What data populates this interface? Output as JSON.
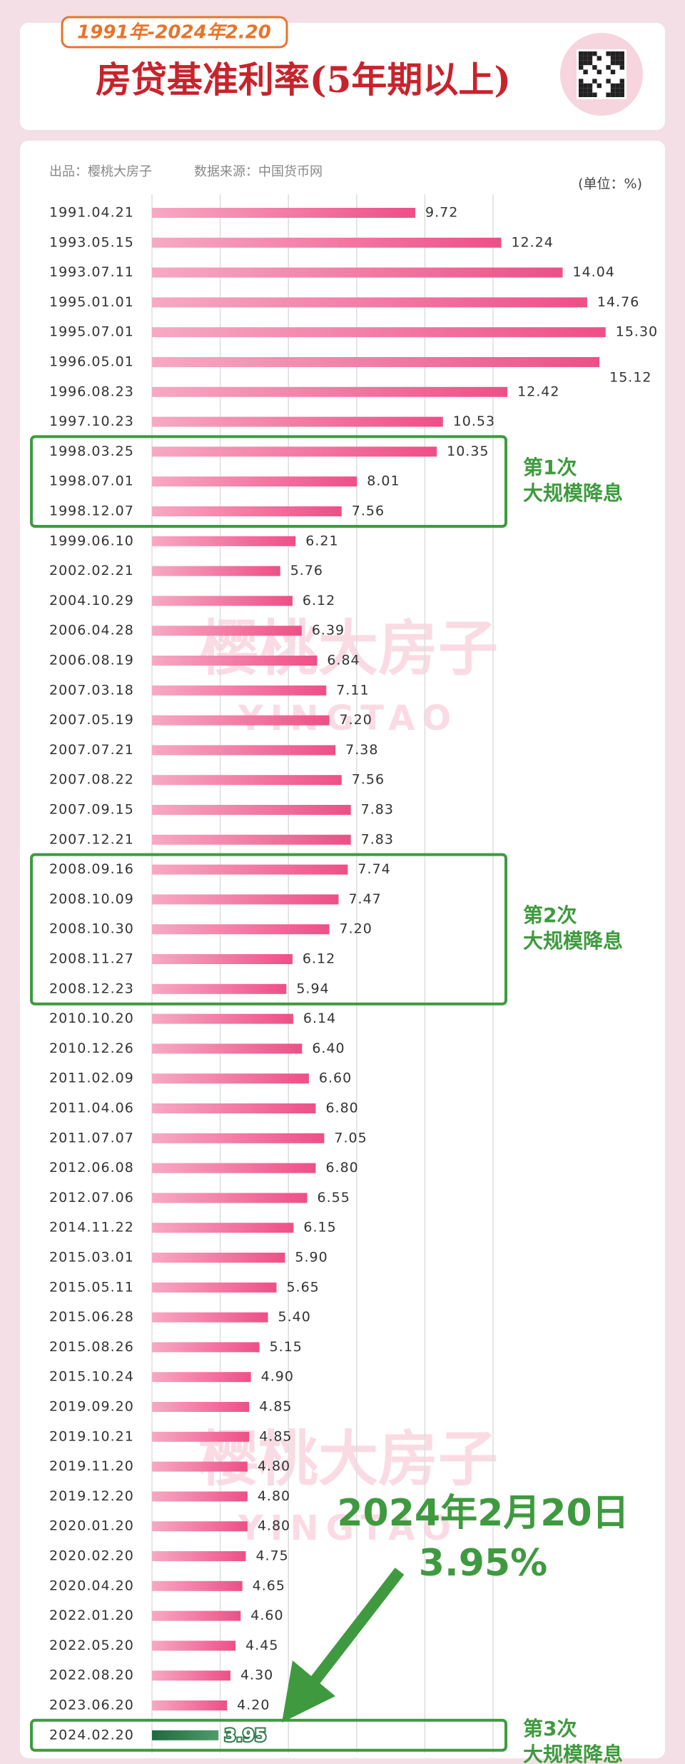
{
  "header": {
    "tag": "1991年-2024年2.20",
    "title": "房贷基准利率(5年期以上)"
  },
  "chart_data": {
    "type": "bar",
    "orientation": "horizontal",
    "producer": "出品：樱桃大房子",
    "source": "数据来源：中国货币网",
    "unit": "(单位：%)",
    "watermark": {
      "cn": "樱桃大房子",
      "en": "YINGTAO"
    },
    "categories": [
      "1991.04.21",
      "1993.05.15",
      "1993.07.11",
      "1995.01.01",
      "1995.07.01",
      "1996.05.01",
      "1996.08.23",
      "1997.10.23",
      "1998.03.25",
      "1998.07.01",
      "1998.12.07",
      "1999.06.10",
      "2002.02.21",
      "2004.10.29",
      "2006.04.28",
      "2006.08.19",
      "2007.03.18",
      "2007.05.19",
      "2007.07.21",
      "2007.08.22",
      "2007.09.15",
      "2007.12.21",
      "2008.09.16",
      "2008.10.09",
      "2008.10.30",
      "2008.11.27",
      "2008.12.23",
      "2010.10.20",
      "2010.12.26",
      "2011.02.09",
      "2011.04.06",
      "2011.07.07",
      "2012.06.08",
      "2012.07.06",
      "2014.11.22",
      "2015.03.01",
      "2015.05.11",
      "2015.06.28",
      "2015.08.26",
      "2015.10.24",
      "2019.09.20",
      "2019.10.21",
      "2019.11.20",
      "2019.12.20",
      "2020.01.20",
      "2020.02.20",
      "2020.04.20",
      "2022.01.20",
      "2022.05.20",
      "2022.08.20",
      "2023.06.20",
      "2024.02.20"
    ],
    "values": [
      9.72,
      12.24,
      14.04,
      14.76,
      15.3,
      15.12,
      12.42,
      10.53,
      10.35,
      8.01,
      7.56,
      6.21,
      5.76,
      6.12,
      6.39,
      6.84,
      7.11,
      7.2,
      7.38,
      7.56,
      7.83,
      7.83,
      7.74,
      7.47,
      7.2,
      6.12,
      5.94,
      6.14,
      6.4,
      6.6,
      6.8,
      7.05,
      6.8,
      6.55,
      6.15,
      5.9,
      5.65,
      5.4,
      5.15,
      4.9,
      4.85,
      4.85,
      4.8,
      4.8,
      4.8,
      4.75,
      4.65,
      4.6,
      4.45,
      4.3,
      4.2,
      3.95
    ],
    "value_labels": [
      "9.72",
      "12.24",
      "14.04",
      "14.76",
      "15.30",
      "15.12",
      "12.42",
      "10.53",
      "10.35",
      "8.01",
      "7.56",
      "6.21",
      "5.76",
      "6.12",
      "6.39",
      "6.84",
      "7.11",
      "7.20",
      "7.38",
      "7.56",
      "7.83",
      "7.83",
      "7.74",
      "7.47",
      "7.20",
      "6.12",
      "5.94",
      "6.14",
      "6.40",
      "6.60",
      "6.80",
      "7.05",
      "6.80",
      "6.55",
      "6.15",
      "5.90",
      "5.65",
      "5.40",
      "5.15",
      "4.90",
      "4.85",
      "4.85",
      "4.80",
      "4.80",
      "4.80",
      "4.75",
      "4.65",
      "4.60",
      "4.45",
      "4.30",
      "4.20",
      "3.95"
    ],
    "color": "#ee4f86",
    "highlight_color": "#2f7d4c",
    "xlim": [
      2,
      17
    ],
    "xticks": [
      4,
      6,
      8,
      10,
      12
    ],
    "grid": true,
    "annotations": [
      {
        "lines": [
          "第1次",
          "大规模降息"
        ]
      },
      {
        "lines": [
          "第2次",
          "大规模降息"
        ]
      },
      {
        "lines": [
          "第3次",
          "大规模降息"
        ]
      }
    ],
    "callout": {
      "lines": [
        "2024年2月20日",
        "3.95%"
      ]
    }
  }
}
